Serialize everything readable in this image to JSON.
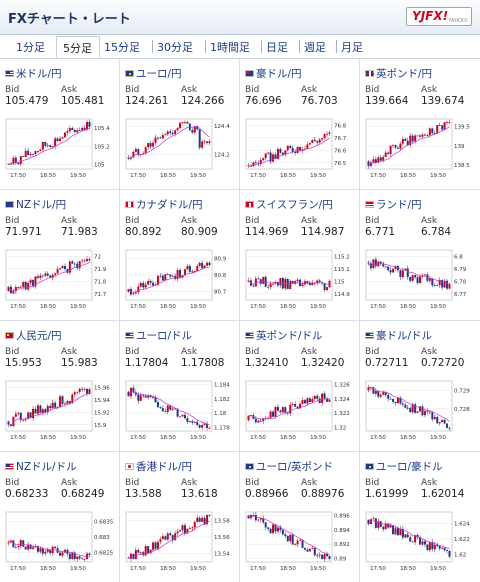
{
  "header": {
    "title": "FXチャート・レート",
    "logo_text": "YJFX!",
    "logo_sub": "YAHOO!"
  },
  "tabs": [
    "1分足",
    "5分足",
    "15分足",
    "30分足",
    "1時間足",
    "日足",
    "週足",
    "月足"
  ],
  "active_tab": 1,
  "labels": {
    "bid": "Bid",
    "ask": "Ask"
  },
  "x_ticks": [
    "17:50",
    "18:50",
    "19:50"
  ],
  "colors": {
    "up": "#d0021b",
    "down": "#1a3a8c",
    "ma": "#cc33cc",
    "link": "#1c3a8c"
  },
  "pairs": [
    {
      "name": "米ドル/円",
      "flag": "us",
      "bid": "105.479",
      "ask": "105.481",
      "chart_data": {
        "type": "candlestick",
        "y_ticks": [
          105.4,
          105.2,
          105
        ],
        "ylim": [
          104.95,
          105.5
        ],
        "start": 105.0,
        "end": 105.46,
        "trend": "up"
      }
    },
    {
      "name": "ユーロ/円",
      "flag": "eu",
      "bid": "124.261",
      "ask": "124.266",
      "chart_data": {
        "type": "candlestick",
        "y_ticks": [
          124.4,
          124.2
        ],
        "ylim": [
          124.1,
          124.45
        ],
        "start": 124.18,
        "end": 124.26,
        "trend": "rise-fall"
      }
    },
    {
      "name": "豪ドル/円",
      "flag": "au",
      "bid": "76.696",
      "ask": "76.703",
      "chart_data": {
        "type": "candlestick",
        "y_ticks": [
          76.8,
          76.7,
          76.6,
          76.5
        ],
        "ylim": [
          76.45,
          76.85
        ],
        "start": 76.48,
        "end": 76.72,
        "trend": "up"
      }
    },
    {
      "name": "英ポンド/円",
      "flag": "gb",
      "bid": "139.664",
      "ask": "139.674",
      "chart_data": {
        "type": "candlestick",
        "y_ticks": [
          139.5,
          139,
          138.5
        ],
        "ylim": [
          138.4,
          139.7
        ],
        "start": 138.6,
        "end": 139.65,
        "trend": "up"
      }
    },
    {
      "name": "NZドル/円",
      "flag": "nz",
      "bid": "71.971",
      "ask": "71.983",
      "chart_data": {
        "type": "candlestick",
        "y_ticks": [
          72,
          71.9,
          71.8,
          71.7
        ],
        "ylim": [
          71.65,
          72.05
        ],
        "start": 71.72,
        "end": 71.98,
        "trend": "up"
      }
    },
    {
      "name": "カナダドル/円",
      "flag": "ca",
      "bid": "80.892",
      "ask": "80.909",
      "chart_data": {
        "type": "candlestick",
        "y_ticks": [
          80.9,
          80.8,
          80.7
        ],
        "ylim": [
          80.65,
          80.95
        ],
        "start": 80.7,
        "end": 80.88,
        "trend": "up"
      }
    },
    {
      "name": "スイスフラン/円",
      "flag": "ch",
      "bid": "114.969",
      "ask": "114.987",
      "chart_data": {
        "type": "candlestick",
        "y_ticks": [
          115.2,
          115.1,
          115,
          114.9
        ],
        "ylim": [
          114.85,
          115.25
        ],
        "start": 115.0,
        "end": 114.96,
        "trend": "flat"
      }
    },
    {
      "name": "ランド/円",
      "flag": "za",
      "bid": "6.771",
      "ask": "6.784",
      "chart_data": {
        "type": "candlestick",
        "y_ticks": [
          6.8,
          6.79,
          6.78,
          6.77
        ],
        "ylim": [
          6.765,
          6.805
        ],
        "start": 6.795,
        "end": 6.775,
        "trend": "down"
      }
    },
    {
      "name": "人民元/円",
      "flag": "cn",
      "bid": "15.953",
      "ask": "15.983",
      "chart_data": {
        "type": "candlestick",
        "y_ticks": [
          15.96,
          15.94,
          15.92,
          15.9
        ],
        "ylim": [
          15.89,
          15.97
        ],
        "start": 15.905,
        "end": 15.955,
        "trend": "up"
      }
    },
    {
      "name": "ユーロ/ドル",
      "flag": "us",
      "bid": "1.17804",
      "ask": "1.17808",
      "chart_data": {
        "type": "candlestick",
        "y_ticks": [
          1.184,
          1.182,
          1.18,
          1.178
        ],
        "ylim": [
          1.1775,
          1.1845
        ],
        "start": 1.183,
        "end": 1.178,
        "trend": "down"
      }
    },
    {
      "name": "英ポンド/ドル",
      "flag": "us",
      "bid": "1.32410",
      "ask": "1.32420",
      "chart_data": {
        "type": "candlestick",
        "y_ticks": [
          1.326,
          1.324,
          1.322,
          1.32
        ],
        "ylim": [
          1.3195,
          1.3265
        ],
        "start": 1.321,
        "end": 1.3243,
        "trend": "up"
      }
    },
    {
      "name": "豪ドル/ドル",
      "flag": "us",
      "bid": "0.72711",
      "ask": "0.72720",
      "chart_data": {
        "type": "candlestick",
        "y_ticks": [
          0.729,
          0.728
        ],
        "ylim": [
          0.7268,
          0.7295
        ],
        "start": 0.729,
        "end": 0.7272,
        "trend": "down"
      }
    },
    {
      "name": "NZドル/ドル",
      "flag": "us",
      "bid": "0.68233",
      "ask": "0.68249",
      "chart_data": {
        "type": "candlestick",
        "y_ticks": [
          0.6835,
          0.683,
          0.6825
        ],
        "ylim": [
          0.6822,
          0.6838
        ],
        "start": 0.6828,
        "end": 0.6823,
        "trend": "flat"
      }
    },
    {
      "name": "香港ドル/円",
      "flag": "jp",
      "bid": "13.588",
      "ask": "13.618",
      "chart_data": {
        "type": "candlestick",
        "y_ticks": [
          13.58,
          13.56,
          13.54
        ],
        "ylim": [
          13.53,
          13.59
        ],
        "start": 13.535,
        "end": 13.585,
        "trend": "up"
      }
    },
    {
      "name": "ユーロ/英ポンド",
      "flag": "eu",
      "bid": "0.88966",
      "ask": "0.88976",
      "chart_data": {
        "type": "candlestick",
        "y_ticks": [
          0.896,
          0.894,
          0.892,
          0.89
        ],
        "ylim": [
          0.8895,
          0.8965
        ],
        "start": 0.896,
        "end": 0.8897,
        "trend": "down"
      }
    },
    {
      "name": "ユーロ/豪ドル",
      "flag": "eu",
      "bid": "1.61999",
      "ask": "1.62014",
      "chart_data": {
        "type": "candlestick",
        "y_ticks": [
          1.624,
          1.622,
          1.62
        ],
        "ylim": [
          1.619,
          1.6255
        ],
        "start": 1.6245,
        "end": 1.62,
        "trend": "down"
      }
    }
  ]
}
